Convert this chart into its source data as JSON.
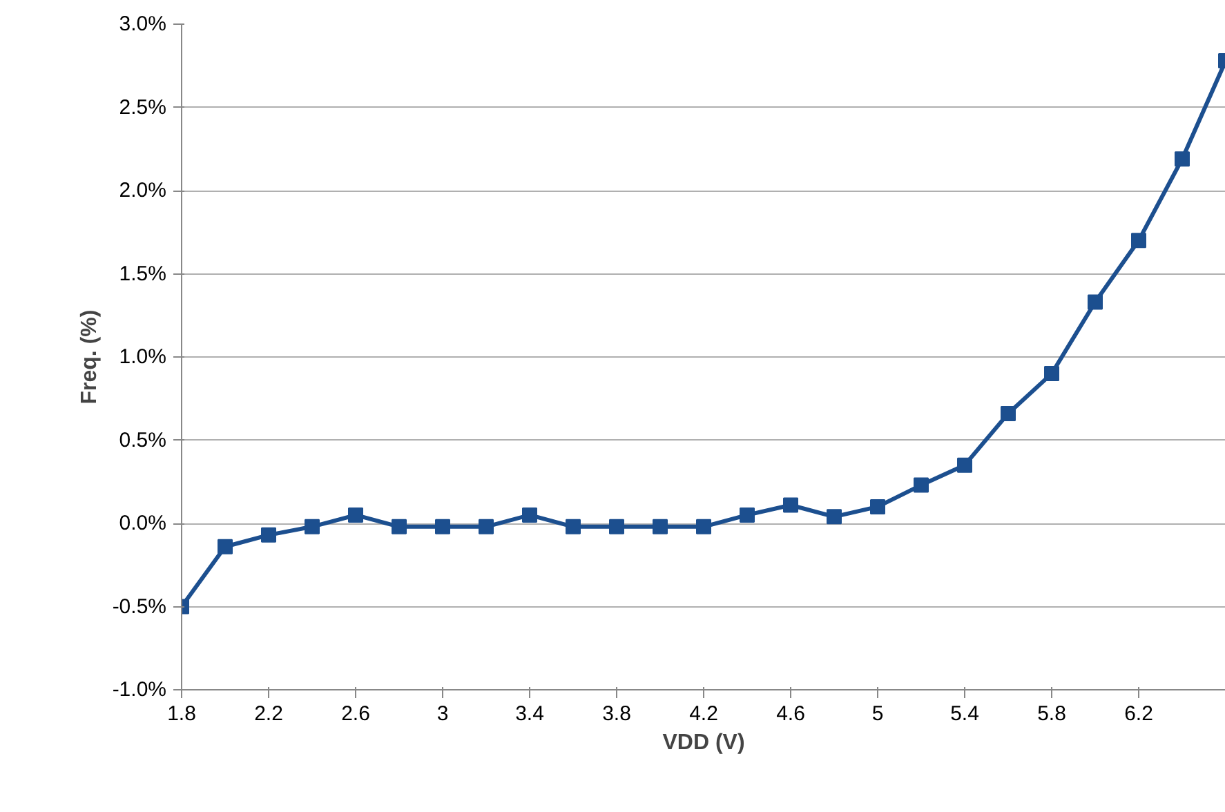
{
  "chart_data": {
    "type": "line",
    "xlabel": "VDD (V)",
    "ylabel": "Freq. (%)",
    "x": [
      1.8,
      2.0,
      2.2,
      2.4,
      2.6,
      2.8,
      3.0,
      3.2,
      3.4,
      3.6,
      3.8,
      4.0,
      4.2,
      4.4,
      4.6,
      4.8,
      5.0,
      5.2,
      5.4,
      5.6,
      5.8,
      6.0,
      6.2,
      6.4,
      6.6
    ],
    "series": [
      {
        "color": "#1c4f8f",
        "values": [
          -0.5,
          -0.14,
          -0.07,
          -0.02,
          0.05,
          -0.02,
          -0.02,
          -0.02,
          0.05,
          -0.02,
          -0.02,
          -0.02,
          -0.02,
          0.05,
          0.11,
          0.04,
          0.1,
          0.23,
          0.35,
          0.66,
          0.9,
          1.33,
          1.7,
          2.19,
          2.78
        ]
      }
    ],
    "xlim": [
      1.8,
      6.6
    ],
    "xticks": [
      1.8,
      2.2,
      2.6,
      3,
      3.4,
      3.8,
      4.2,
      4.6,
      5,
      5.4,
      5.8,
      6.2
    ],
    "ylim": [
      -1.0,
      3.0
    ],
    "yticks": [
      {
        "value": -1.0,
        "label": "-1.0%"
      },
      {
        "value": -0.5,
        "label": "-0.5%"
      },
      {
        "value": 0.0,
        "label": "0.0%"
      },
      {
        "value": 0.5,
        "label": "0.5%"
      },
      {
        "value": 1.0,
        "label": "1.0%"
      },
      {
        "value": 1.5,
        "label": "1.5%"
      },
      {
        "value": 2.0,
        "label": "2.0%"
      },
      {
        "value": 2.5,
        "label": "2.5%"
      },
      {
        "value": 3.0,
        "label": "3.0%"
      }
    ],
    "grid": "y",
    "marker": "square",
    "line_style": "solid"
  }
}
